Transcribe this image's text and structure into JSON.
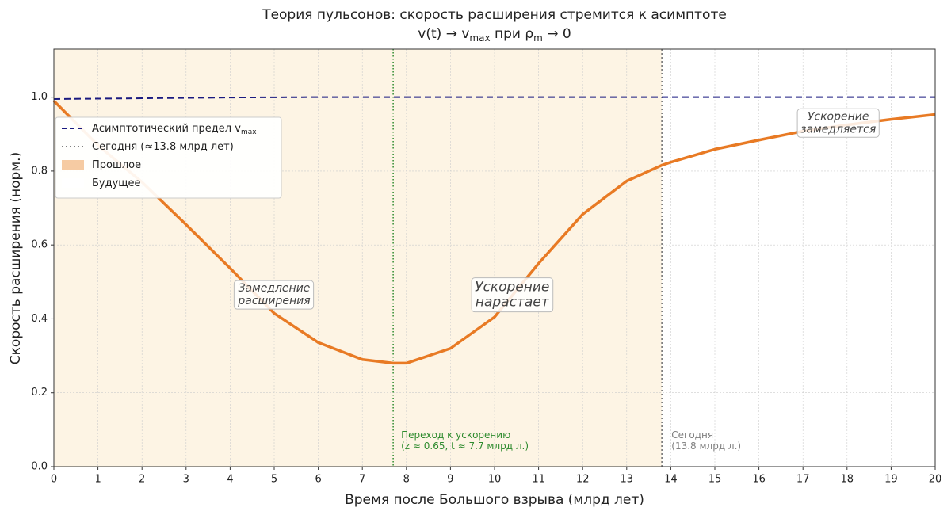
{
  "chart_data": {
    "type": "line",
    "title": "Теория пульсонов: скорость расширения стремится к асимптоте",
    "subtitle_parts": [
      {
        "text": "v(t) → v"
      },
      {
        "text": "max",
        "sub": true
      },
      {
        "text": " при ρ"
      },
      {
        "text": "m",
        "sub": true
      },
      {
        "text": " → 0"
      }
    ],
    "x_label": "Время после Большого взрыва (млрд лет)",
    "y_label": "Скорость расширения (норм.)",
    "xlim": [
      0,
      20
    ],
    "ylim": [
      0,
      1.13
    ],
    "xticks": [
      0,
      1,
      2,
      3,
      4,
      5,
      6,
      7,
      8,
      9,
      10,
      11,
      12,
      13,
      14,
      15,
      16,
      17,
      18,
      19,
      20
    ],
    "yticks": [
      {
        "value": 0,
        "label": "0.0"
      },
      0.2,
      0.4,
      0.6,
      0.8,
      {
        "value": 1,
        "label": "1.0"
      }
    ],
    "grid": true,
    "legend": "upper left",
    "series": [
      {
        "name": "Асимптотический предел v",
        "name_sub": "max",
        "color": "#1a1a80",
        "style": "dashed",
        "x": [
          0,
          2,
          4,
          6,
          20
        ],
        "values": [
          0.995,
          0.997,
          0.999,
          1,
          1
        ]
      },
      {
        "color": "#e87a24",
        "style": "solid",
        "x": [
          0,
          1,
          2,
          3,
          4,
          5,
          6,
          7,
          7.7,
          8,
          9,
          10,
          11,
          12,
          13,
          13.8,
          14,
          15,
          16,
          17,
          18,
          19,
          20
        ],
        "values": [
          0.99,
          0.87,
          0.77,
          0.655,
          0.537,
          0.415,
          0.336,
          0.29,
          0.28,
          0.28,
          0.32,
          0.405,
          0.55,
          0.683,
          0.773,
          0.816,
          0.824,
          0.859,
          0.884,
          0.908,
          0.925,
          0.94,
          0.953
        ]
      }
    ],
    "vlines": [
      {
        "x": 7.7,
        "color": "#2e8b2e",
        "label_lines": [
          "Переход к ускорению",
          "(z ≈ 0.65,  t ≈ 7.7 млрд л.)"
        ]
      },
      {
        "x": 13.8,
        "color": "#808080",
        "name": "Сегодня (≈13.8 млрд лет)",
        "label_lines": [
          "Сегодня",
          "(13.8 млрд л.)"
        ]
      }
    ],
    "regions": [
      {
        "name": "Прошлое",
        "x": [
          0,
          13.8
        ],
        "color": "#fdf4e4",
        "legend_color": "#f6cba3"
      },
      {
        "name": "Будущее",
        "x": [
          13.8,
          20
        ],
        "color": "#ffffff"
      }
    ],
    "annotations": [
      {
        "lines": [
          "Замедление",
          "расширения"
        ]
      },
      {
        "lines": [
          "Ускорение",
          "нарастает"
        ]
      },
      {
        "lines": [
          "Ускорение",
          "замедляется"
        ]
      }
    ]
  }
}
